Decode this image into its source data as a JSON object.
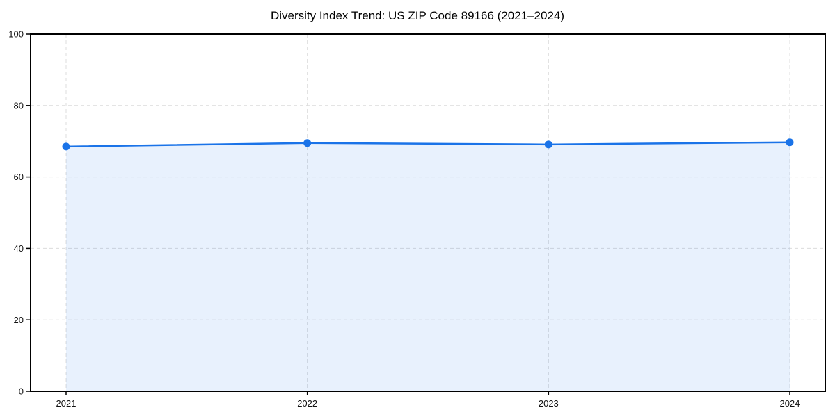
{
  "figure": {
    "background": "#ffffff"
  },
  "chart_data": {
    "type": "area",
    "title": "Diversity Index Trend: US ZIP Code 89166 (2021–2024)",
    "categories": [
      "2021",
      "2022",
      "2023",
      "2024"
    ],
    "values": [
      68.5,
      69.5,
      69.1,
      69.7
    ],
    "xlabel": "",
    "ylabel": "",
    "ylim": [
      0,
      100
    ],
    "yticks": [
      0,
      20,
      40,
      60,
      80,
      100
    ],
    "grid": {
      "visible": true,
      "style": "dashed",
      "color": "#dcdcdc"
    },
    "legend": {
      "visible": false
    },
    "colors": {
      "line": "#1a73e8",
      "marker": "#1a73e8",
      "fill": "rgba(26,115,232,0.10)",
      "spine": "#000000",
      "tick_label": "#111111",
      "title": "#000000"
    }
  }
}
